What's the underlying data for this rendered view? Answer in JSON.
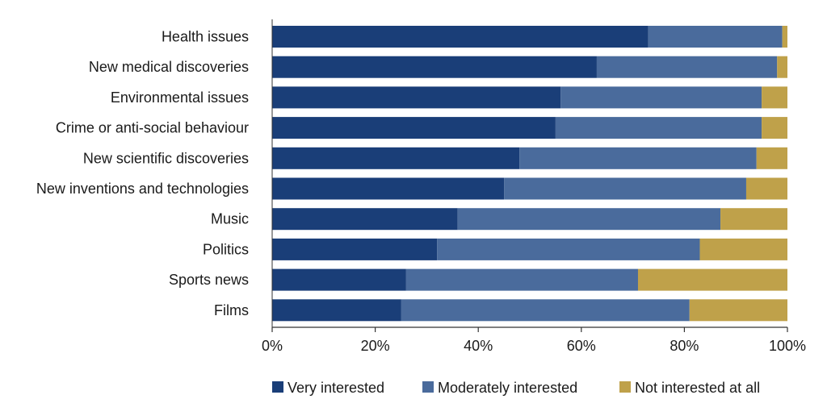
{
  "chart_data": {
    "type": "bar",
    "orientation": "horizontal",
    "stacked": true,
    "title": "",
    "xlabel": "",
    "ylabel": "",
    "xlim": [
      0,
      100
    ],
    "x_ticks": [
      "0%",
      "20%",
      "40%",
      "60%",
      "80%",
      "100%"
    ],
    "categories": [
      "Health issues",
      "New medical discoveries",
      "Environmental issues",
      "Crime or anti-social behaviour",
      "New scientific discoveries",
      "New inventions and technologies",
      "Music",
      "Politics",
      "Sports news",
      "Films"
    ],
    "series": [
      {
        "name": "Very interested",
        "color": "#1a3e78",
        "values": [
          73,
          63,
          56,
          55,
          48,
          45,
          36,
          32,
          26,
          25
        ]
      },
      {
        "name": "Moderately interested",
        "color": "#4a6b9c",
        "values": [
          26,
          35,
          39,
          40,
          46,
          47,
          51,
          51,
          45,
          56
        ]
      },
      {
        "name": "Not interested at all",
        "color": "#bfa14a",
        "values": [
          1,
          2,
          5,
          5,
          6,
          8,
          13,
          17,
          29,
          19
        ]
      }
    ],
    "grid": false,
    "legend_position": "bottom"
  }
}
